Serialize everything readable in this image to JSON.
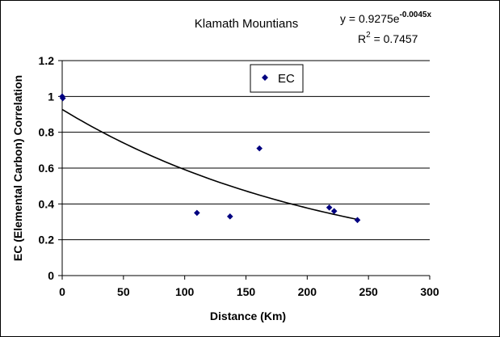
{
  "chart_data": {
    "type": "scatter",
    "title": "Klamath Mountians",
    "xlabel": "Distance (Km)",
    "ylabel": "EC (Elemental Carbon) Correlation",
    "xlim": [
      0,
      300
    ],
    "ylim": [
      0,
      1.2
    ],
    "x_ticks": [
      "0",
      "50",
      "100",
      "150",
      "200",
      "250",
      "300"
    ],
    "y_ticks": [
      "0",
      "0.2",
      "0.4",
      "0.6",
      "0.8",
      "1",
      "1.2"
    ],
    "x_tick_values": [
      0,
      50,
      100,
      150,
      200,
      250,
      300
    ],
    "y_tick_values": [
      0,
      0.2,
      0.4,
      0.6,
      0.8,
      1.0,
      1.2
    ],
    "grid": "horizontal",
    "legend": "top-center",
    "series": [
      {
        "name": "EC",
        "color": "#000080",
        "marker": "diamond",
        "points": [
          {
            "x": 0,
            "y": 1.0
          },
          {
            "x": 0.5,
            "y": 0.99
          },
          {
            "x": 110,
            "y": 0.35
          },
          {
            "x": 137,
            "y": 0.33
          },
          {
            "x": 161,
            "y": 0.71
          },
          {
            "x": 218,
            "y": 0.38
          },
          {
            "x": 222,
            "y": 0.36
          },
          {
            "x": 241,
            "y": 0.31
          }
        ]
      }
    ],
    "trendline": {
      "type": "exponential",
      "a": 0.9275,
      "b": -0.0045,
      "x_range": [
        0,
        241
      ],
      "equation_prefix": "y = 0.9275e",
      "equation_exponent": "-0.0045x",
      "r2_prefix": "R",
      "r2_exponent": "2",
      "r2_value": " = 0.7457"
    }
  }
}
